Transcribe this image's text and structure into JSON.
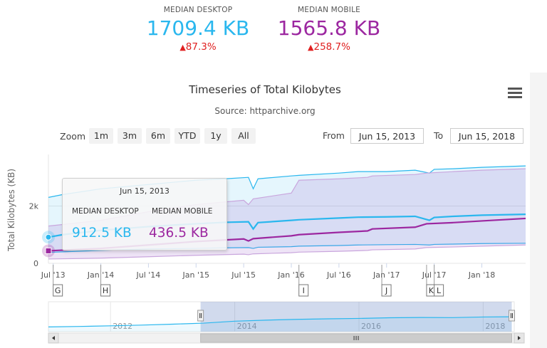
{
  "summary": {
    "desktop": {
      "label": "MEDIAN DESKTOP",
      "value": "1709.4 KB",
      "change_arrow": "▲",
      "change": "87.3%",
      "color": "#2ab7ee"
    },
    "mobile": {
      "label": "MEDIAN MOBILE",
      "value": "1565.8 KB",
      "change_arrow": "▲",
      "change": "258.7%",
      "color": "#9c27a0"
    }
  },
  "chart": {
    "title": "Timeseries of Total Kilobytes",
    "subtitle": "Source: httparchive.org",
    "menu_icon": "hamburger-menu-icon",
    "zoom_label": "Zoom",
    "zoom_buttons": [
      "1m",
      "3m",
      "6m",
      "YTD",
      "1y",
      "All"
    ],
    "range": {
      "from_label": "From",
      "from_value": "Jun 15, 2013",
      "to_label": "To",
      "to_value": "Jun 15, 2018"
    }
  },
  "tooltip": {
    "date": "Jun 15, 2013",
    "desktop_label": "MEDIAN DESKTOP",
    "desktop_value": "912.5 KB",
    "mobile_label": "MEDIAN MOBILE",
    "mobile_value": "436.5 KB"
  },
  "chart_data": {
    "type": "area",
    "title": "Timeseries of Total Kilobytes",
    "subtitle": "Source: httparchive.org",
    "xlabel": "",
    "ylabel": "Total Kilobytes (KB)",
    "ylim": [
      0,
      3800
    ],
    "y_ticks": [
      0,
      2000
    ],
    "y_tick_labels": [
      "0",
      "2k"
    ],
    "x_ticks": [
      {
        "t": 2013.5,
        "label": "Jul '13"
      },
      {
        "t": 2014.0,
        "label": "Jan '14"
      },
      {
        "t": 2014.5,
        "label": "Jul '14"
      },
      {
        "t": 2015.0,
        "label": "Jan '15"
      },
      {
        "t": 2015.5,
        "label": "Jul '15"
      },
      {
        "t": 2016.0,
        "label": "Jan '16"
      },
      {
        "t": 2016.5,
        "label": "Jul '16"
      },
      {
        "t": 2017.0,
        "label": "Jan '17"
      },
      {
        "t": 2017.5,
        "label": "Jul '17"
      },
      {
        "t": 2018.0,
        "label": "Jan '18"
      }
    ],
    "x_range": [
      2013.45,
      2018.46
    ],
    "series": [
      {
        "name": "MEDIAN DESKTOP",
        "color": "#2ab7ee",
        "x": [
          2013.45,
          2013.6,
          2014.0,
          2014.5,
          2015.0,
          2015.3,
          2015.55,
          2015.6,
          2015.65,
          2016.0,
          2016.08,
          2016.5,
          2016.7,
          2017.0,
          2017.3,
          2017.45,
          2017.5,
          2017.7,
          2018.0,
          2018.46
        ],
        "values": [
          912,
          1000,
          1150,
          1280,
          1380,
          1430,
          1450,
          1200,
          1420,
          1500,
          1520,
          1580,
          1610,
          1620,
          1640,
          1500,
          1600,
          1640,
          1680,
          1710
        ],
        "low": [
          380,
          400,
          450,
          500,
          520,
          540,
          550,
          520,
          560,
          580,
          600,
          620,
          640,
          650,
          660,
          640,
          660,
          670,
          690,
          700
        ],
        "high": [
          2300,
          2400,
          2600,
          2750,
          2900,
          2950,
          3000,
          2600,
          2950,
          3050,
          3070,
          3150,
          3200,
          3200,
          3250,
          3150,
          3280,
          3300,
          3350,
          3400
        ]
      },
      {
        "name": "MEDIAN MOBILE",
        "color": "#9c27a0",
        "x": [
          2013.45,
          2014.0,
          2014.5,
          2015.0,
          2015.5,
          2015.55,
          2015.6,
          2016.0,
          2016.08,
          2016.5,
          2016.8,
          2016.85,
          2017.3,
          2017.42,
          2017.7,
          2018.0,
          2018.46
        ],
        "values": [
          436,
          520,
          640,
          760,
          850,
          780,
          860,
          960,
          1000,
          1080,
          1130,
          1200,
          1260,
          1380,
          1420,
          1480,
          1566
        ],
        "low": [
          150,
          180,
          230,
          280,
          320,
          300,
          330,
          370,
          390,
          420,
          450,
          470,
          500,
          550,
          570,
          600,
          640
        ],
        "high": [
          1300,
          1500,
          1800,
          2050,
          2200,
          2050,
          2250,
          2450,
          2900,
          2950,
          3000,
          3050,
          3100,
          3150,
          3200,
          3250,
          3300
        ]
      }
    ],
    "flags": [
      {
        "t": 2013.5,
        "label": "G"
      },
      {
        "t": 2014.0,
        "label": "H"
      },
      {
        "t": 2016.08,
        "label": "I"
      },
      {
        "t": 2016.95,
        "label": "J"
      },
      {
        "t": 2017.42,
        "label": "K"
      },
      {
        "t": 2017.5,
        "label": "L"
      }
    ],
    "navigator": {
      "labels": [
        {
          "t": 2012.0,
          "label": "2012"
        },
        {
          "t": 2014.0,
          "label": "2014"
        },
        {
          "t": 2016.0,
          "label": "2016"
        },
        {
          "t": 2018.0,
          "label": "2018"
        }
      ],
      "x_range": [
        2011.0,
        2018.5
      ],
      "selected_range": [
        2013.45,
        2018.46
      ],
      "x": [
        2011.0,
        2011.5,
        2012.0,
        2012.5,
        2013.0,
        2013.5,
        2014.0,
        2014.5,
        2015.0,
        2015.5,
        2016.0,
        2016.5,
        2017.0,
        2017.5,
        2018.0,
        2018.46
      ],
      "values": [
        420,
        480,
        560,
        650,
        770,
        900,
        1150,
        1280,
        1380,
        1450,
        1500,
        1580,
        1620,
        1600,
        1680,
        1710
      ]
    }
  }
}
